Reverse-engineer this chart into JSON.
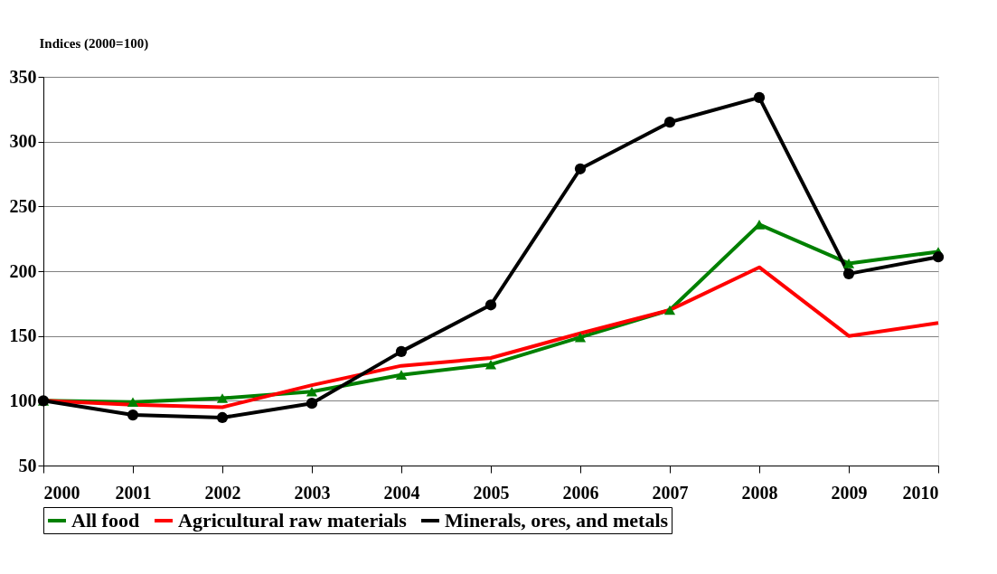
{
  "chart_data": {
    "type": "line",
    "ylabel": "Indices (2000=100)",
    "x": [
      2000,
      2001,
      2002,
      2003,
      2004,
      2005,
      2006,
      2007,
      2008,
      2009,
      2010
    ],
    "series": [
      {
        "name": "All food",
        "color": "#008000",
        "marker": "triangle",
        "values": [
          100,
          99,
          102,
          107,
          120,
          128,
          149,
          170,
          236,
          206,
          215
        ]
      },
      {
        "name": "Agricultural raw materials",
        "color": "#ff0000",
        "marker": "none",
        "values": [
          100,
          97,
          95,
          112,
          127,
          133,
          152,
          170,
          203,
          150,
          160
        ]
      },
      {
        "name": "Minerals, ores, and metals",
        "color": "#000000",
        "marker": "circle",
        "values": [
          100,
          89,
          87,
          98,
          138,
          174,
          279,
          315,
          334,
          198,
          211
        ]
      }
    ],
    "xlim": [
      2000,
      2010
    ],
    "xticks": [
      2000,
      2001,
      2002,
      2003,
      2004,
      2005,
      2006,
      2007,
      2008,
      2009,
      2010
    ],
    "ylim": [
      50,
      350
    ],
    "yticks": [
      50,
      100,
      150,
      200,
      250,
      300,
      350
    ],
    "grid": "y",
    "legend": "bottom",
    "line_style": "solid"
  }
}
